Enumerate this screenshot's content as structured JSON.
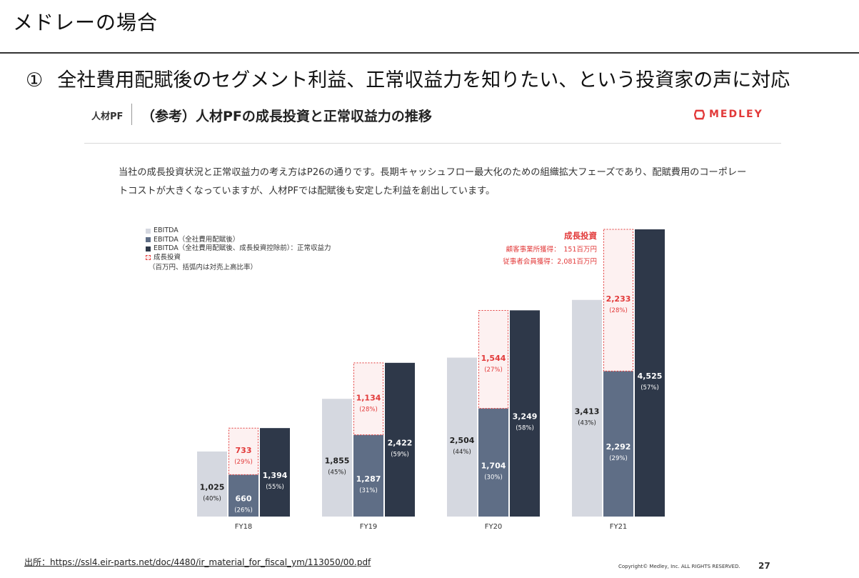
{
  "slide": {
    "title": "メドレーの場合",
    "headline_num": "①",
    "headline": "全社費用配賦後のセグメント利益、正常収益力を知りたい、という投資家の声に対応"
  },
  "report": {
    "tag": "人材PF",
    "title": "（参考）人材PFの成長投資と正常収益力の推移",
    "brand": "MEDLEY",
    "brand_color": "#e23a3a",
    "description": "当社の成長投資状況と正常収益力の考え方はP26の通りです。長期キャッシュフロー最大化のための組織拡大フェーズであり、配賦費用のコーポレートコストが大きくなっていますが、人材PFでは配賦後も安定した利益を創出しています。"
  },
  "annotation": {
    "title": "成長投資",
    "lines": [
      "顧客事業所獲得：　151百万円",
      "従事者会員獲得：2,081百万円"
    ]
  },
  "footer": {
    "source": "出所：https://ssl4.eir-parts.net/doc/4480/ir_material_for_fiscal_ym/113050/00.pdf",
    "copyright": "Copyright© Medley, Inc. ALL RIGHTS RESERVED.",
    "page": "27"
  },
  "chart_data": {
    "type": "bar",
    "categories": [
      "FY18",
      "FY19",
      "FY20",
      "FY21"
    ],
    "legend": [
      {
        "label": "EBITDA",
        "color": "#d5d8e0"
      },
      {
        "label": "EBITDA（全社費用配賦後）",
        "color": "#5f6e86"
      },
      {
        "label": "EBITDA（全社費用配賦後、成長投資控除前）：正常収益力",
        "color": "#2e3849"
      },
      {
        "label": "成長投資",
        "color": "#e23a3a"
      }
    ],
    "legend_note": "（百万円、括弧内は対売上高比率）",
    "series": [
      {
        "name": "EBITDA",
        "values": [
          1025,
          1855,
          2504,
          3413
        ],
        "pct": [
          "(40%)",
          "(45%)",
          "(44%)",
          "(43%)"
        ],
        "labels": [
          "1,025",
          "1,855",
          "2,504",
          "3,413"
        ]
      },
      {
        "name": "EBITDA（全社費用配賦後）",
        "values": [
          660,
          1287,
          1704,
          2292
        ],
        "pct": [
          "(26%)",
          "(31%)",
          "(30%)",
          "(29%)"
        ],
        "labels": [
          "660",
          "1,287",
          "1,704",
          "2,292"
        ]
      },
      {
        "name": "成長投資",
        "values": [
          733,
          1134,
          1544,
          2233
        ],
        "pct": [
          "(29%)",
          "(28%)",
          "(27%)",
          "(28%)"
        ],
        "labels": [
          "733",
          "1,134",
          "1,544",
          "2,233"
        ]
      },
      {
        "name": "EBITDA（全社費用配賦後、成長投資控除前）：正常収益力",
        "values": [
          1394,
          2422,
          3249,
          4525
        ],
        "pct": [
          "(55%)",
          "(59%)",
          "(58%)",
          "(57%)"
        ],
        "labels": [
          "1,394",
          "2,422",
          "3,249",
          "4,525"
        ]
      }
    ],
    "ylim": [
      0,
      4525
    ],
    "grid": false
  }
}
